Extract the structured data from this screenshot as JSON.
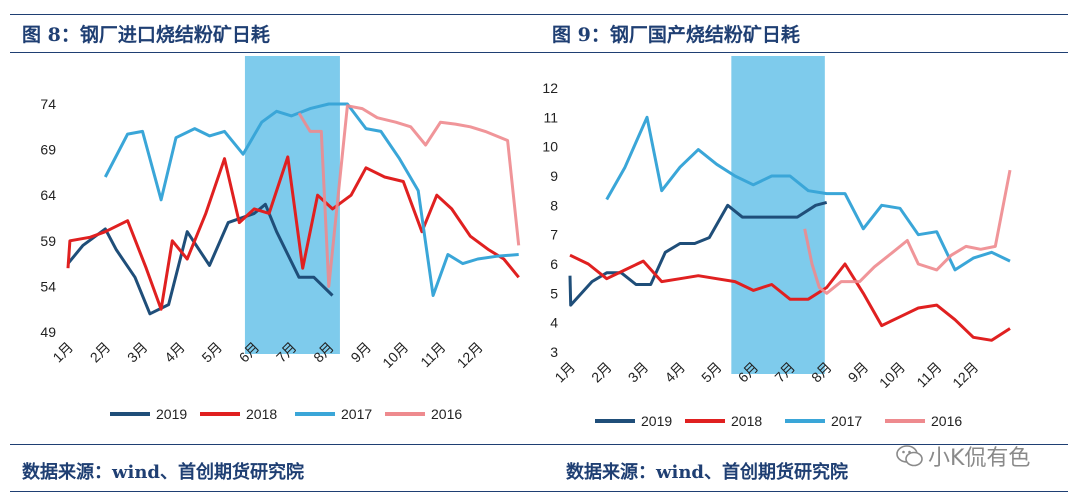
{
  "left": {
    "title": "图 8：钢厂进口烧结粉矿日耗",
    "source": "数据来源：wind、首创期货研究院"
  },
  "right": {
    "title": "图 9：钢厂国产烧结粉矿日耗",
    "source": "数据来源：wind、首创期货研究院"
  },
  "watermark": "小K侃有色",
  "colors": {
    "2019": "#1f4e79",
    "2018": "#e02020",
    "2017": "#3aa6d8",
    "2016": "#ee8a8e",
    "highlight": "#7ecbec",
    "rule": "#1f3f73"
  },
  "chart_data": [
    {
      "type": "line",
      "title": "图 8：钢厂进口烧结粉矿日耗",
      "categories": [
        "1月",
        "2月",
        "3月",
        "4月",
        "5月",
        "6月",
        "7月",
        "8月",
        "9月",
        "10月",
        "11月",
        "12月"
      ],
      "ylim": [
        49,
        74
      ],
      "yticks": [
        49,
        54,
        59,
        64,
        69,
        74
      ],
      "grid": false,
      "legend": "bottom",
      "highlight": {
        "from": 5.75,
        "to": 8.3
      },
      "series": [
        {
          "name": "2019",
          "x": [
            1,
            1.4,
            2.0,
            2.3,
            2.8,
            3.2,
            3.7,
            4.2,
            4.8,
            5.3,
            6.0,
            6.3,
            6.6,
            7.2,
            7.6,
            8.1
          ],
          "values": [
            56.5,
            58.5,
            60.3,
            58.0,
            55.0,
            51.0,
            52.0,
            60.0,
            56.3,
            61.0,
            62.0,
            63.0,
            60.0,
            55.0,
            55.0,
            53.0
          ]
        },
        {
          "name": "2018",
          "x": [
            1,
            1.05,
            1.6,
            2.0,
            2.6,
            3.1,
            3.5,
            3.8,
            4.2,
            4.7,
            5.2,
            5.6,
            6.0,
            6.4,
            6.9,
            7.3,
            7.7,
            8.1,
            8.6,
            9.0,
            9.5,
            10.0,
            10.5,
            10.9,
            11.3,
            11.8,
            12.3,
            12.7,
            13.1
          ],
          "values": [
            56.0,
            59.0,
            59.4,
            60.0,
            61.2,
            56.0,
            51.5,
            59.0,
            57.0,
            62.0,
            68.0,
            61.0,
            62.5,
            62.0,
            68.2,
            56.0,
            64.0,
            62.5,
            64.0,
            67.0,
            66.0,
            65.5,
            60.0,
            64.0,
            62.5,
            59.5,
            58.0,
            57.0,
            55.0
          ]
        },
        {
          "name": "2017",
          "x": [
            2.0,
            2.6,
            3.0,
            3.5,
            3.9,
            4.4,
            4.8,
            5.2,
            5.7,
            6.2,
            6.6,
            7.0,
            7.5,
            8.0,
            8.5,
            9.0,
            9.4,
            9.9,
            10.4,
            10.8,
            11.2,
            11.6,
            12.0,
            12.5,
            13.1
          ],
          "values": [
            66.0,
            70.7,
            71.0,
            63.5,
            70.3,
            71.3,
            70.5,
            71.0,
            68.5,
            72.0,
            73.2,
            72.7,
            73.5,
            74.0,
            74.0,
            71.3,
            71.0,
            68.0,
            64.5,
            53.0,
            57.5,
            56.5,
            57.0,
            57.3,
            57.5
          ]
        },
        {
          "name": "2016",
          "x": [
            7.2,
            7.5,
            7.8,
            8.0,
            8.5,
            8.9,
            9.3,
            9.8,
            10.2,
            10.6,
            11.0,
            11.4,
            11.8,
            12.2,
            12.8,
            13.1
          ],
          "values": [
            73.0,
            71.0,
            71.0,
            54.0,
            73.8,
            73.5,
            72.5,
            72.0,
            71.5,
            69.5,
            72.0,
            71.8,
            71.5,
            71.0,
            70.0,
            58.5
          ]
        }
      ]
    },
    {
      "type": "line",
      "title": "图 9：钢厂国产烧结粉矿日耗",
      "categories": [
        "1月",
        "2月",
        "3月",
        "4月",
        "5月",
        "6月",
        "7月",
        "8月",
        "9月",
        "10月",
        "11月",
        "12月"
      ],
      "ylim": [
        3,
        12
      ],
      "yticks": [
        3,
        4,
        5,
        6,
        7,
        8,
        9,
        10,
        11,
        12
      ],
      "grid": false,
      "legend": "bottom",
      "highlight": {
        "from": 5.4,
        "to": 7.95
      },
      "series": [
        {
          "name": "2019",
          "x": [
            1,
            1.02,
            1.6,
            2.0,
            2.4,
            2.8,
            3.2,
            3.6,
            4.0,
            4.4,
            4.8,
            5.3,
            5.7,
            6.2,
            6.7,
            7.2,
            7.7,
            8.0
          ],
          "values": [
            5.6,
            4.6,
            5.4,
            5.7,
            5.7,
            5.3,
            5.3,
            6.4,
            6.7,
            6.7,
            6.9,
            8.0,
            7.6,
            7.6,
            7.6,
            7.6,
            8.0,
            8.1
          ]
        },
        {
          "name": "2018",
          "x": [
            1,
            1.5,
            2.0,
            2.5,
            3.0,
            3.5,
            4.0,
            4.5,
            5.0,
            5.5,
            6.0,
            6.5,
            7.0,
            7.5,
            8.0,
            8.5,
            9.0,
            9.5,
            10.0,
            10.5,
            11.0,
            11.5,
            12.0,
            12.5,
            13.0
          ],
          "values": [
            6.3,
            6.0,
            5.5,
            5.8,
            6.1,
            5.4,
            5.5,
            5.6,
            5.5,
            5.4,
            5.1,
            5.3,
            4.8,
            4.8,
            5.2,
            6.0,
            5.0,
            3.9,
            4.2,
            4.5,
            4.6,
            4.1,
            3.5,
            3.4,
            3.8
          ]
        },
        {
          "name": "2017",
          "x": [
            2.0,
            2.5,
            3.1,
            3.5,
            4.0,
            4.5,
            5.0,
            5.5,
            6.0,
            6.5,
            7.0,
            7.5,
            8.0,
            8.5,
            9.0,
            9.5,
            10.0,
            10.5,
            11.0,
            11.5,
            12.0,
            12.5,
            13.0
          ],
          "values": [
            8.2,
            9.3,
            11.0,
            8.5,
            9.3,
            9.9,
            9.4,
            9.0,
            8.7,
            9.0,
            9.0,
            8.5,
            8.4,
            8.4,
            7.2,
            8.0,
            7.9,
            7.0,
            7.1,
            5.8,
            6.2,
            6.4,
            6.1
          ]
        },
        {
          "name": "2016",
          "x": [
            7.4,
            7.6,
            7.8,
            8.0,
            8.4,
            8.9,
            9.3,
            9.8,
            10.2,
            10.5,
            11.0,
            11.4,
            11.8,
            12.2,
            12.6,
            13.0
          ],
          "values": [
            7.2,
            6.0,
            5.2,
            5.0,
            5.4,
            5.4,
            5.9,
            6.4,
            6.8,
            6.0,
            5.8,
            6.3,
            6.6,
            6.5,
            6.6,
            9.2
          ]
        }
      ]
    }
  ]
}
